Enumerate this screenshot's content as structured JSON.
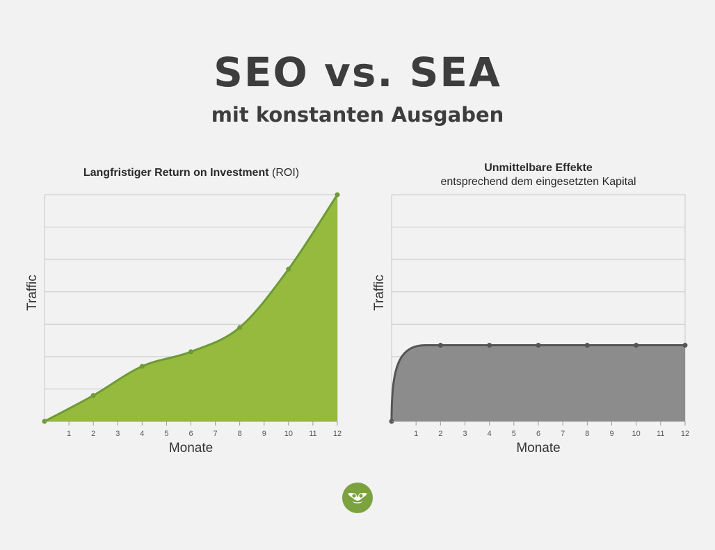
{
  "title": "SEO vs. SEA",
  "subtitle": "mit konstanten Ausgaben",
  "colors": {
    "background": "#f2f2f2",
    "seo_fill": "#96ba3e",
    "seo_line": "#6d9a35",
    "sea_fill": "#8c8c8c",
    "sea_line": "#555555",
    "grid": "#c8c8c8",
    "logo": "#7ba23f"
  },
  "logo": {
    "icon": "owl-icon"
  },
  "chart_data": [
    {
      "type": "area",
      "title_bold": "Langfristiger Return on Investment",
      "title_regular": "(ROI)",
      "xlabel": "Monate",
      "ylabel": "Traffic",
      "x_ticks": [
        "1",
        "2",
        "3",
        "4",
        "5",
        "6",
        "7",
        "8",
        "9",
        "10",
        "11",
        "12"
      ],
      "xlim": [
        0,
        12
      ],
      "ylim": [
        0,
        7
      ],
      "grid": true,
      "x": [
        0,
        2,
        4,
        6,
        8,
        10,
        12
      ],
      "y": [
        0,
        0.8,
        1.7,
        2.15,
        2.9,
        4.7,
        7.0
      ]
    },
    {
      "type": "area",
      "title_bold": "Unmittelbare Effekte",
      "title_regular": "entsprechend dem eingesetzten Kapital",
      "xlabel": "Monate",
      "ylabel": "Traffic",
      "x_ticks": [
        "1",
        "2",
        "3",
        "4",
        "5",
        "6",
        "7",
        "8",
        "9",
        "10",
        "11",
        "12"
      ],
      "xlim": [
        0,
        12
      ],
      "ylim": [
        0,
        7
      ],
      "grid": true,
      "x": [
        0,
        2,
        4,
        6,
        8,
        10,
        12
      ],
      "y": [
        0,
        2.35,
        2.35,
        2.35,
        2.35,
        2.35,
        2.35
      ]
    }
  ]
}
